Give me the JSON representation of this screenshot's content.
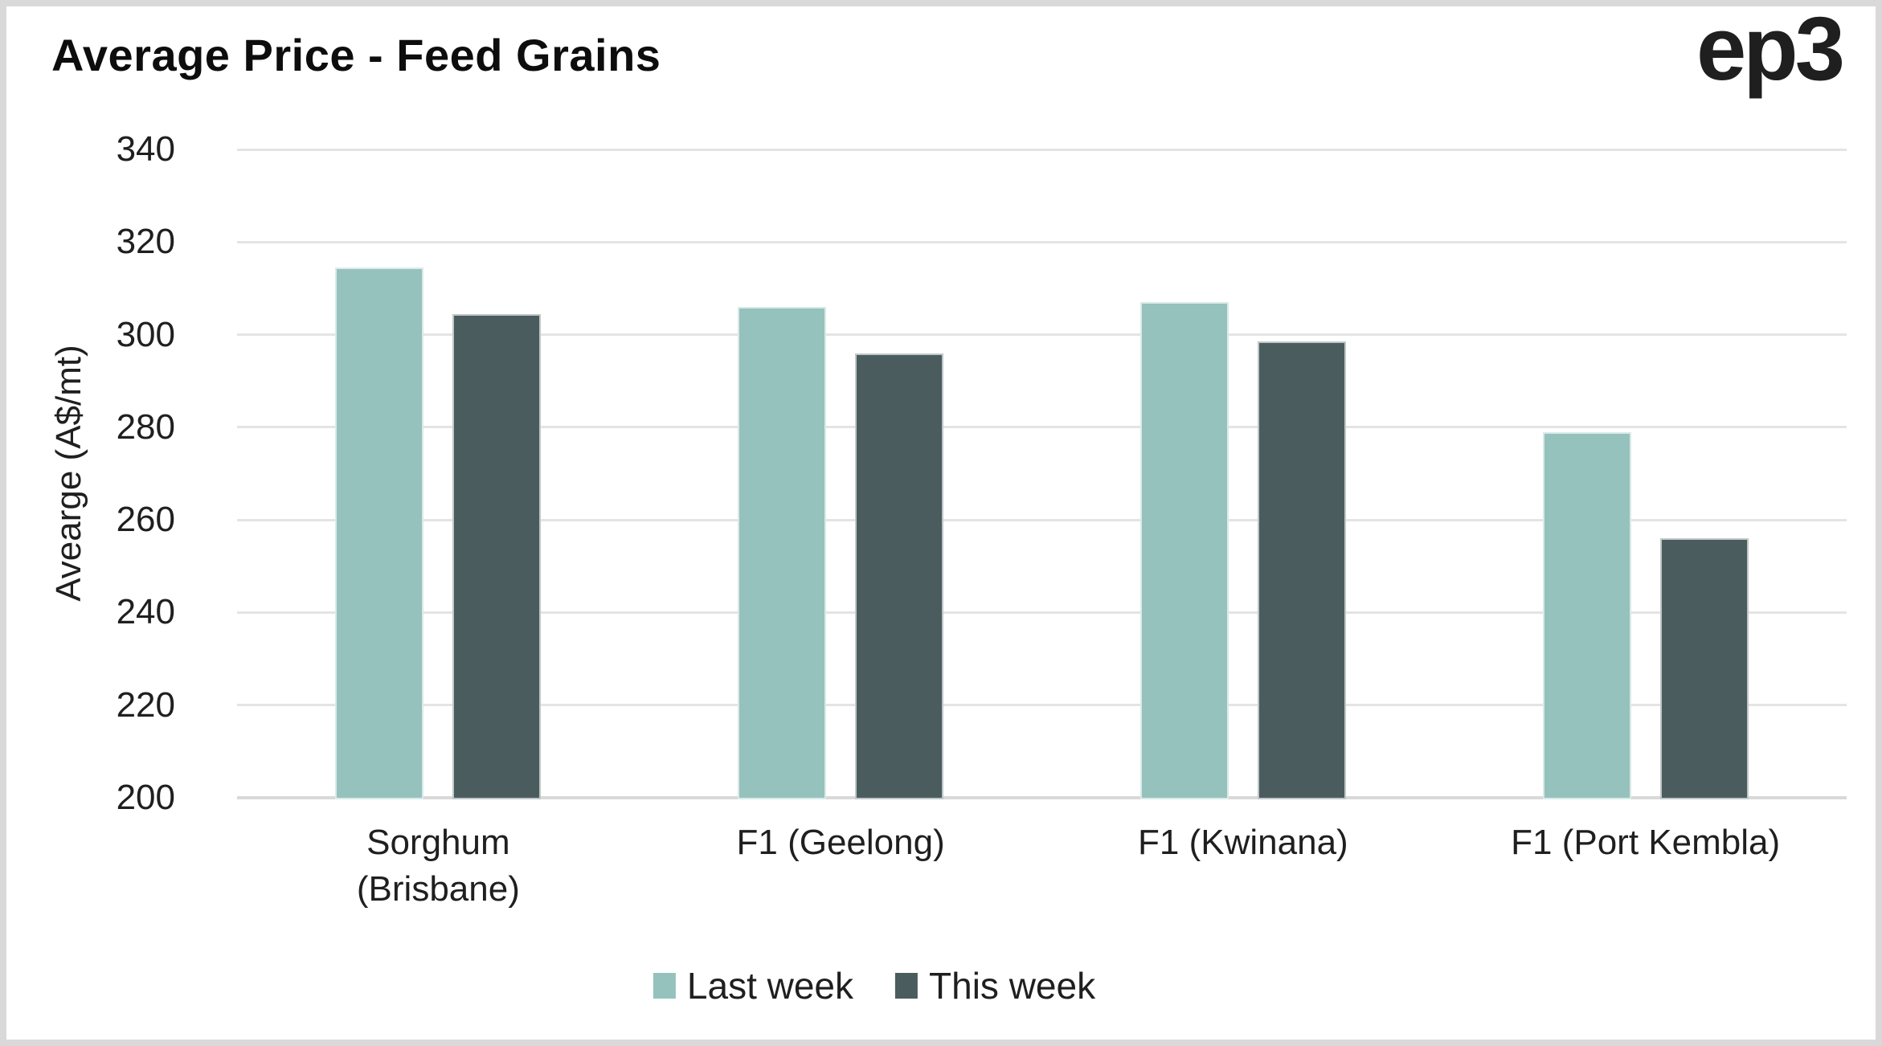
{
  "header": {
    "title": "Average Price - Feed Grains",
    "logo": "ep3"
  },
  "chart_data": {
    "type": "bar",
    "title": "Average Price - Feed Grains",
    "xlabel": "",
    "ylabel": "Avearge (A$/mt)",
    "categories": [
      "Sorghum (Brisbane)",
      "F1 (Geelong)",
      "F1 (Kwinana)",
      "F1 (Port Kembla)"
    ],
    "category_label_lines": [
      [
        "Sorghum",
        "(Brisbane)"
      ],
      [
        "F1 (Geelong)"
      ],
      [
        "F1 (Kwinana)"
      ],
      [
        "F1 (Port Kembla)"
      ]
    ],
    "series": [
      {
        "name": "Last week",
        "color": "#95c2bd",
        "values": [
          314.5,
          306,
          307,
          279
        ]
      },
      {
        "name": "This week",
        "color": "#4a5c5e",
        "values": [
          304.5,
          296,
          298.5,
          256
        ]
      }
    ],
    "ylim": [
      200,
      340
    ],
    "yticks": [
      200,
      220,
      240,
      260,
      280,
      300,
      320,
      340
    ],
    "grid": true,
    "legend_position": "bottom",
    "colors": {
      "gridline": "#e4e4e4",
      "baseline": "#d9d9d9",
      "page_border": "#d9d9d9",
      "text": "#1f1f1f"
    }
  }
}
